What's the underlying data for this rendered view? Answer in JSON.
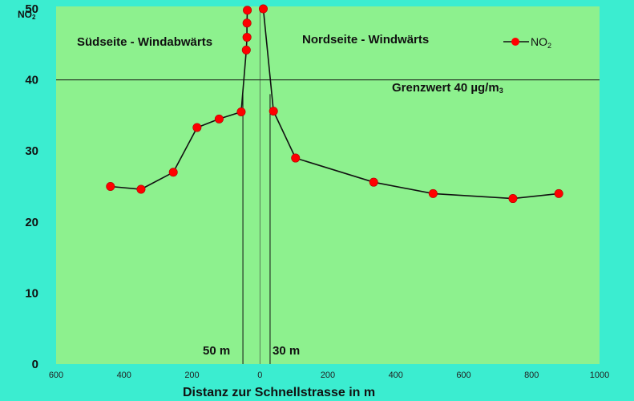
{
  "chart_data": {
    "type": "line",
    "title": "",
    "ylabel": "NO2",
    "xlabel": "Distanz zur Schnellstrasse in m",
    "xlim": [
      -600,
      1000
    ],
    "ylim": [
      0,
      50
    ],
    "x_ticks": [
      -600,
      -400,
      -200,
      0,
      200,
      400,
      600,
      800,
      1000
    ],
    "x_tick_labels": [
      "600",
      "400",
      "200",
      "0",
      "200",
      "400",
      "600",
      "800",
      "1000"
    ],
    "y_ticks": [
      0,
      10,
      20,
      30,
      40,
      50
    ],
    "grid": false,
    "legend_position": "top-right",
    "series": [
      {
        "name": "NO2",
        "color": "#ff0000",
        "left_side": [
          {
            "x": -440,
            "y": 25.0
          },
          {
            "x": -350,
            "y": 24.6
          },
          {
            "x": -255,
            "y": 27.0
          },
          {
            "x": -185,
            "y": 33.3
          },
          {
            "x": -120,
            "y": 34.5
          },
          {
            "x": -55,
            "y": 35.5
          },
          {
            "x": -40,
            "y": 44.2
          },
          {
            "x": -38,
            "y": 46.0
          },
          {
            "x": -38,
            "y": 48.0
          },
          {
            "x": -37,
            "y": 49.8
          }
        ],
        "right_side": [
          {
            "x": 10,
            "y": 50.0
          },
          {
            "x": 40,
            "y": 35.6
          },
          {
            "x": 105,
            "y": 29.0
          },
          {
            "x": 335,
            "y": 25.6
          },
          {
            "x": 510,
            "y": 24.0
          },
          {
            "x": 745,
            "y": 23.3
          },
          {
            "x": 880,
            "y": 24.0
          }
        ]
      }
    ],
    "reference_lines": {
      "limit_y": 40,
      "left_distance_x": -50,
      "right_distance_x": 30,
      "center_x": 0
    },
    "annotations": {
      "south": "Südseite - Windabwärts",
      "north": "Nordseite - Windwärts",
      "limit": "Grenzwert 40 µg/m",
      "limit_sub": "3",
      "left_distance": "50 m",
      "right_distance": "30 m"
    },
    "legend": {
      "label": "NO",
      "label_sub": "2"
    },
    "ylabel_main": "NO",
    "ylabel_sub": "2"
  },
  "colors": {
    "background": "#3bedd0",
    "plot_area": "#8df18e",
    "marker": "#ff0000",
    "line": "#111111"
  }
}
